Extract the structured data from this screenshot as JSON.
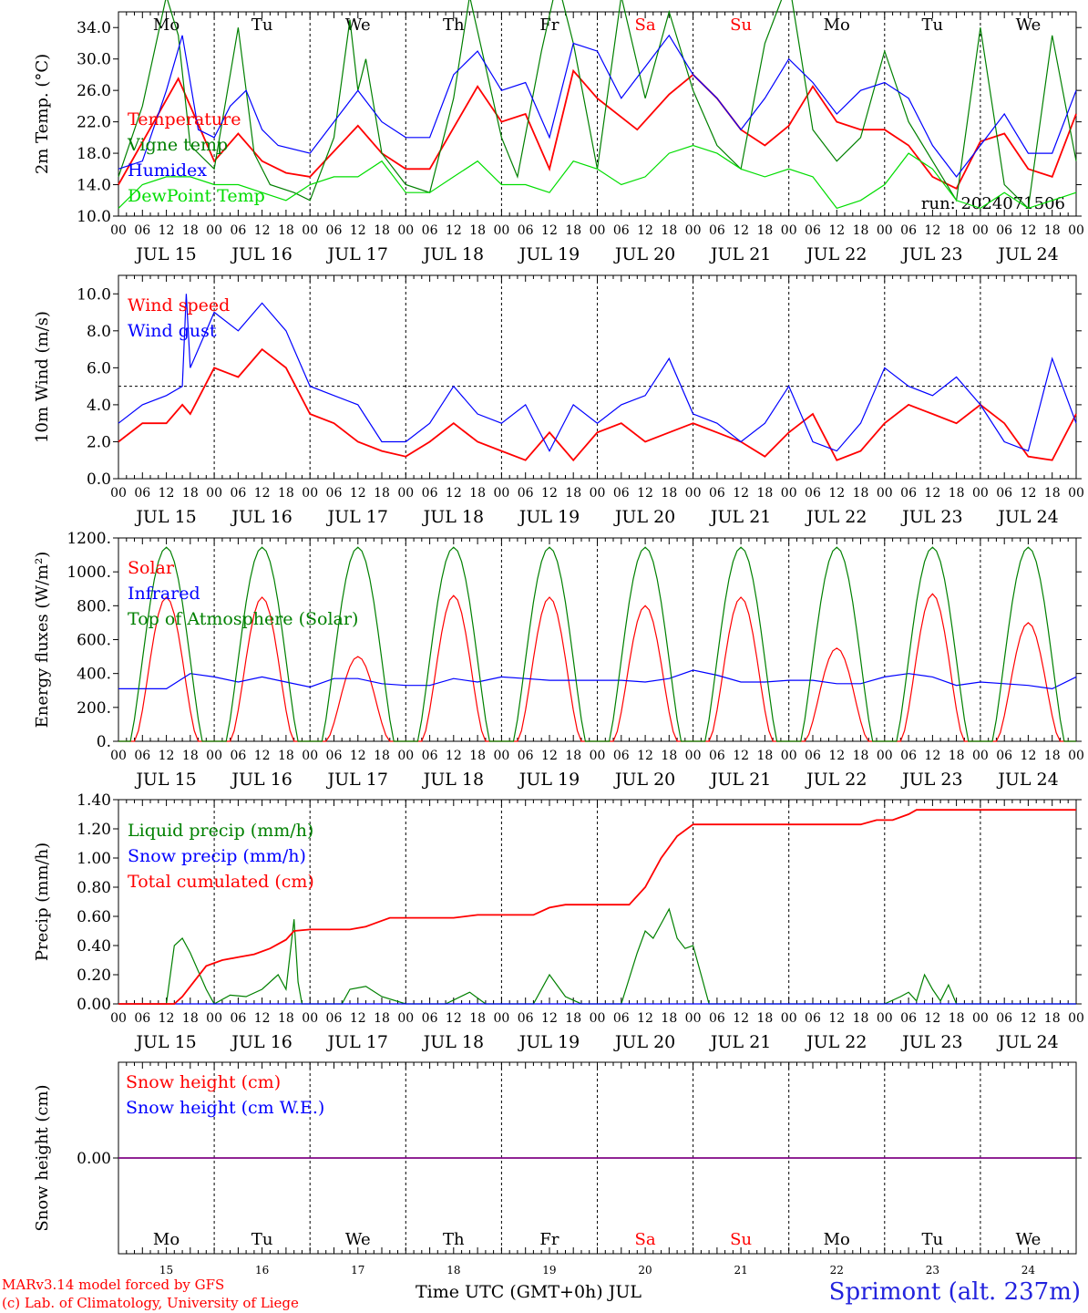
{
  "colors": {
    "red": "#ff0000",
    "blue": "#0000ff",
    "green": "#008000",
    "lightgreen": "#00dd00",
    "purple": "#800080"
  },
  "footer": {
    "model": "MARv3.14 model forced by GFS",
    "credit": "(c) Lab. of Climatology, University of Liege",
    "xlabel": "Time UTC (GMT+0h) JUL",
    "station": "Sprimont (alt. 237m)"
  },
  "chart_data": {
    "type": "line",
    "days": [
      {
        "date": "JUL 15",
        "weekday": "Mo",
        "num": "15",
        "weekend": false
      },
      {
        "date": "JUL 16",
        "weekday": "Tu",
        "num": "16",
        "weekend": false
      },
      {
        "date": "JUL 17",
        "weekday": "We",
        "num": "17",
        "weekend": false
      },
      {
        "date": "JUL 18",
        "weekday": "Th",
        "num": "18",
        "weekend": false
      },
      {
        "date": "JUL 19",
        "weekday": "Fr",
        "num": "19",
        "weekend": false
      },
      {
        "date": "JUL 20",
        "weekday": "Sa",
        "num": "20",
        "weekend": true
      },
      {
        "date": "JUL 21",
        "weekday": "Su",
        "num": "21",
        "weekend": true
      },
      {
        "date": "JUL 22",
        "weekday": "Mo",
        "num": "22",
        "weekend": false
      },
      {
        "date": "JUL 23",
        "weekday": "Tu",
        "num": "23",
        "weekend": false
      },
      {
        "date": "JUL 24",
        "weekday": "We",
        "num": "24",
        "weekend": false
      }
    ],
    "hour_ticks": [
      "00",
      "06",
      "12",
      "18"
    ],
    "last_tick": "00",
    "panels": [
      {
        "id": "temperature",
        "ylabel": "2m Temp. (°C)",
        "ylim": [
          10,
          36
        ],
        "yticks": [
          "10.0",
          "14.0",
          "18.0",
          "22.0",
          "26.0",
          "30.0",
          "34.0"
        ],
        "show_weekdays": true,
        "annotation": "run: 2024071506",
        "series": [
          {
            "name": "Temperature",
            "color": "red",
            "x": [
              0,
              15,
              24,
              30,
              36,
              42,
              48,
              60,
              66,
              72,
              78,
              90,
              96,
              102,
              108,
              114,
              120,
              130,
              138,
              144,
              150,
              156,
              162,
              168,
              174,
              180,
              186,
              192,
              198,
              204,
              210,
              216,
              222,
              228,
              234,
              240
            ],
            "y": [
              14,
              27.5,
              17,
              20.5,
              17,
              15.5,
              15,
              21.5,
              18,
              16,
              16,
              26.5,
              22,
              23,
              16,
              28.5,
              25,
              21,
              25.5,
              28,
              25,
              21,
              19,
              21.5,
              26.5,
              22,
              21,
              21,
              19,
              15,
              13.5,
              19.5,
              20.5,
              16,
              15,
              23
            ]
          },
          {
            "name": "Vigne temp",
            "color": "green",
            "x": [
              0,
              6,
              12,
              15,
              18,
              24,
              30,
              34,
              38,
              44,
              48,
              54,
              58,
              60,
              62,
              66,
              72,
              78,
              84,
              88,
              92,
              96,
              100,
              106,
              110,
              114,
              120,
              126,
              132,
              138,
              144,
              150,
              156,
              162,
              168,
              174,
              180,
              186,
              192,
              198,
              204,
              210,
              216,
              222,
              228,
              234,
              240
            ],
            "y": [
              15,
              24,
              38,
              33,
              19,
              16,
              34,
              18,
              14,
              13,
              12,
              20,
              35,
              26,
              30,
              18,
              14,
              13,
              25,
              38,
              29,
              20,
              15,
              31,
              40,
              32,
              16,
              38,
              25,
              36,
              26,
              19,
              16,
              32,
              40,
              21,
              17,
              20,
              31,
              22,
              17,
              12,
              34,
              14,
              11,
              33,
              17
            ]
          },
          {
            "name": "Humidex",
            "color": "blue",
            "x": [
              0,
              6,
              12,
              16,
              20,
              24,
              28,
              32,
              36,
              40,
              48,
              54,
              60,
              66,
              72,
              78,
              84,
              90,
              96,
              102,
              108,
              114,
              120,
              126,
              132,
              138,
              144,
              150,
              156,
              162,
              168,
              174,
              180,
              186,
              192,
              198,
              204,
              210,
              216,
              222,
              228,
              234,
              240
            ],
            "y": [
              16,
              17,
              26,
              33,
              21,
              20,
              24,
              26,
              21,
              19,
              18,
              22,
              26,
              22,
              20,
              20,
              28,
              31,
              26,
              27,
              20,
              32,
              31,
              25,
              29,
              33,
              28,
              25,
              21,
              25,
              30,
              27,
              23,
              26,
              27,
              25,
              19,
              15,
              19,
              23,
              18,
              18,
              26
            ]
          },
          {
            "name": "DewPoint Temp",
            "color": "lightgreen",
            "x": [
              0,
              6,
              12,
              18,
              24,
              30,
              36,
              42,
              48,
              54,
              60,
              66,
              72,
              78,
              84,
              90,
              96,
              102,
              108,
              114,
              120,
              126,
              132,
              138,
              144,
              150,
              156,
              162,
              168,
              174,
              180,
              186,
              192,
              198,
              204,
              210,
              216,
              222,
              228,
              234,
              240
            ],
            "y": [
              11,
              14,
              15,
              15,
              14,
              14,
              13,
              12,
              14,
              15,
              15,
              17,
              13,
              13,
              15,
              17,
              14,
              14,
              13,
              17,
              16,
              14,
              15,
              18,
              19,
              18,
              16,
              15,
              16,
              15,
              11,
              12,
              14,
              18,
              16,
              12,
              11,
              13,
              11,
              12,
              13
            ]
          }
        ]
      },
      {
        "id": "wind",
        "ylabel": "10m Wind (m/s)",
        "ylim": [
          0,
          11
        ],
        "yticks": [
          "0.0",
          "2.0",
          "4.0",
          "6.0",
          "8.0",
          "10.0"
        ],
        "ref_line": 5,
        "series": [
          {
            "name": "Wind speed",
            "color": "red",
            "x": [
              0,
              6,
              12,
              16,
              18,
              24,
              30,
              36,
              42,
              48,
              54,
              60,
              66,
              72,
              78,
              84,
              90,
              96,
              102,
              108,
              114,
              120,
              126,
              132,
              138,
              144,
              150,
              156,
              162,
              168,
              174,
              180,
              186,
              192,
              198,
              204,
              210,
              216,
              222,
              228,
              234,
              240
            ],
            "y": [
              2,
              3,
              3,
              4,
              3.5,
              6,
              5.5,
              7,
              6,
              3.5,
              3,
              2,
              1.5,
              1.2,
              2,
              3,
              2,
              1.5,
              1,
              2.5,
              1,
              2.5,
              3,
              2,
              2.5,
              3,
              2.5,
              2,
              1.2,
              2.5,
              3.5,
              1,
              1.5,
              3,
              4,
              3.5,
              3,
              4,
              3,
              1.2,
              1,
              3.5
            ]
          },
          {
            "name": "Wind gust",
            "color": "blue",
            "x": [
              0,
              6,
              12,
              16,
              17,
              18,
              24,
              30,
              36,
              42,
              48,
              54,
              60,
              66,
              72,
              78,
              84,
              90,
              96,
              102,
              108,
              114,
              120,
              126,
              132,
              138,
              144,
              150,
              156,
              162,
              168,
              174,
              180,
              186,
              192,
              198,
              204,
              210,
              216,
              222,
              228,
              234,
              240
            ],
            "y": [
              3,
              4,
              4.5,
              5,
              10,
              6,
              9,
              8,
              9.5,
              8,
              5,
              4.5,
              4,
              2,
              2,
              3,
              5,
              3.5,
              3,
              4,
              1.5,
              4,
              3,
              4,
              4.5,
              6.5,
              3.5,
              3,
              2,
              3,
              5,
              2,
              1.5,
              3,
              6,
              5,
              4.5,
              5.5,
              4,
              2,
              1.5,
              6.5,
              3
            ]
          }
        ]
      },
      {
        "id": "energy",
        "ylabel": "Energy fluxes (W/m²)",
        "ylim": [
          0,
          1200
        ],
        "yticks": [
          "0.",
          "200.",
          "400.",
          "600.",
          "800.",
          "1000.",
          "1200."
        ],
        "series": [
          {
            "name": "Solar",
            "color": "red",
            "peaks": [
              850,
              850,
              500,
              860,
              850,
              800,
              850,
              550,
              870,
              700
            ]
          },
          {
            "name": "Infrared",
            "color": "blue",
            "x": [
              0,
              12,
              18,
              24,
              30,
              36,
              42,
              48,
              54,
              60,
              66,
              72,
              78,
              84,
              90,
              96,
              102,
              108,
              114,
              120,
              126,
              132,
              138,
              144,
              150,
              156,
              162,
              168,
              174,
              180,
              186,
              192,
              198,
              204,
              210,
              216,
              222,
              228,
              234,
              240
            ],
            "y": [
              310,
              310,
              400,
              380,
              350,
              380,
              350,
              320,
              370,
              370,
              340,
              330,
              330,
              370,
              350,
              380,
              370,
              360,
              360,
              360,
              360,
              350,
              370,
              420,
              390,
              350,
              350,
              360,
              360,
              340,
              340,
              380,
              400,
              380,
              330,
              350,
              340,
              330,
              310,
              380
            ]
          },
          {
            "name": "Top of Atmosphere (Solar)",
            "color": "green",
            "peak": 1145
          }
        ]
      },
      {
        "id": "precip",
        "ylabel": "Precip (mm/h)",
        "ylim": [
          0,
          1.4
        ],
        "yticks": [
          "0.00",
          "0.20",
          "0.40",
          "0.60",
          "0.80",
          "1.00",
          "1.20",
          "1.40"
        ],
        "series": [
          {
            "name": "Liquid precip (mm/h)",
            "color": "green",
            "x": [
              0,
              12,
              14,
              16,
              18,
              22,
              24,
              28,
              32,
              36,
              40,
              42,
              44,
              45,
              46,
              48,
              56,
              58,
              62,
              66,
              72,
              82,
              88,
              92,
              104,
              108,
              112,
              116,
              126,
              130,
              132,
              134,
              136,
              138,
              140,
              142,
              144,
              146,
              148,
              150,
              152,
              192,
              196,
              198,
              200,
              202,
              204,
              206,
              208,
              210,
              212,
              240
            ],
            "y": [
              0,
              0,
              0.4,
              0.45,
              0.35,
              0.1,
              0,
              0.06,
              0.05,
              0.1,
              0.2,
              0.1,
              0.58,
              0.15,
              0,
              0,
              0,
              0.1,
              0.12,
              0.05,
              0,
              0,
              0.08,
              0,
              0,
              0.2,
              0.05,
              0,
              0,
              0.35,
              0.5,
              0.45,
              0.55,
              0.65,
              0.45,
              0.38,
              0.4,
              0.2,
              0,
              0,
              0,
              0,
              0.05,
              0.08,
              0.02,
              0.2,
              0.1,
              0.02,
              0.13,
              0,
              0,
              0
            ]
          },
          {
            "name": "Snow precip (mm/h)",
            "color": "blue",
            "x": [
              0,
              240
            ],
            "y": [
              0,
              0
            ]
          },
          {
            "name": "Total cumulated (cm)",
            "color": "red",
            "x": [
              0,
              14,
              16,
              18,
              22,
              26,
              30,
              34,
              38,
              42,
              44,
              48,
              54,
              58,
              62,
              66,
              68,
              72,
              84,
              90,
              96,
              102,
              104,
              108,
              112,
              120,
              128,
              132,
              136,
              140,
              144,
              180,
              186,
              190,
              194,
              198,
              200,
              240
            ],
            "y": [
              0,
              0,
              0.05,
              0.12,
              0.26,
              0.3,
              0.32,
              0.34,
              0.38,
              0.44,
              0.5,
              0.51,
              0.51,
              0.51,
              0.53,
              0.57,
              0.59,
              0.59,
              0.59,
              0.61,
              0.61,
              0.61,
              0.61,
              0.66,
              0.68,
              0.68,
              0.68,
              0.8,
              1.0,
              1.15,
              1.23,
              1.23,
              1.23,
              1.26,
              1.26,
              1.3,
              1.33,
              1.33
            ]
          }
        ]
      },
      {
        "id": "snow",
        "ylabel": "Snow height (cm)",
        "ylim": [
          -1,
          1
        ],
        "yticks": [
          "0.00"
        ],
        "show_bottom_weekdays": true,
        "series": [
          {
            "name": "Snow height (cm)",
            "color": "red",
            "x": [
              0,
              240
            ],
            "y": [
              0,
              0
            ]
          },
          {
            "name": "Snow height (cm W.E.)",
            "color": "blue",
            "x": [
              0,
              240
            ],
            "y": [
              0,
              0
            ]
          }
        ]
      }
    ]
  }
}
